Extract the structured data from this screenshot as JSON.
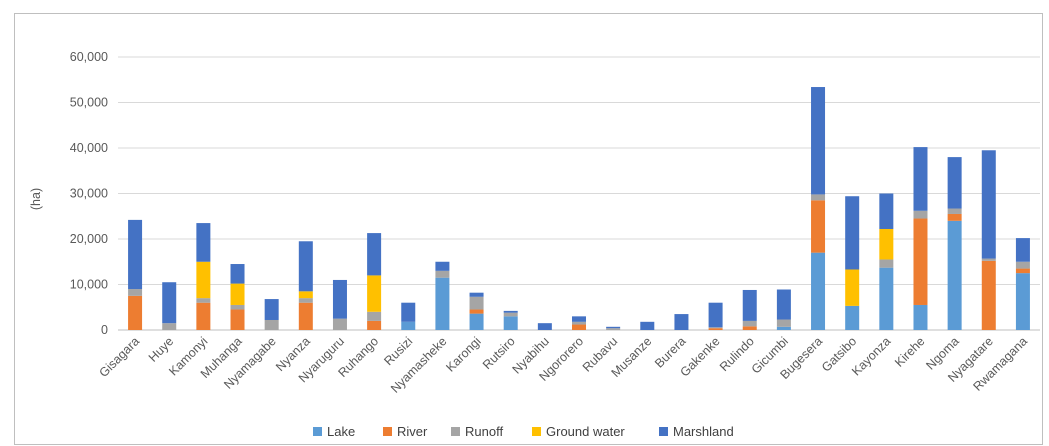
{
  "chart_data": {
    "type": "bar",
    "stacked": true,
    "title": "",
    "xlabel": "",
    "ylabel": "(ha)",
    "ylim": [
      0,
      60000
    ],
    "yticks": [
      0,
      10000,
      20000,
      30000,
      40000,
      50000,
      60000
    ],
    "ytick_labels": [
      "0",
      "10,000",
      "20,000",
      "30,000",
      "40,000",
      "50,000",
      "60,000"
    ],
    "grid": true,
    "legend_position": "bottom",
    "categories": [
      "Gisagara",
      "Huye",
      "Kamonyi",
      "Muhanga",
      "Nyamagabe",
      "Nyanza",
      "Nyaruguru",
      "Ruhango",
      "Rusizi",
      "Nyamasheke",
      "Karongi",
      "Rutsiro",
      "Nyabihu",
      "Ngororero",
      "Rubavu",
      "Musanze",
      "Burera",
      "Gakenke",
      "Rulindo",
      "Gicumbi",
      "Bugesera",
      "Gatsibo",
      "Kayonza",
      "Kirehe",
      "Ngoma",
      "Nyagatare",
      "Rwamagana"
    ],
    "series": [
      {
        "name": "Lake",
        "color": "#5b9bd5",
        "values": [
          0,
          0,
          0,
          0,
          0,
          0,
          0,
          0,
          1800,
          11500,
          3600,
          3000,
          0,
          0,
          0,
          0,
          0,
          0,
          0,
          700,
          17000,
          5300,
          13700,
          5500,
          24000,
          0,
          12500
        ]
      },
      {
        "name": "River",
        "color": "#ed7d31",
        "values": [
          7500,
          0,
          6000,
          4500,
          0,
          6000,
          0,
          2000,
          0,
          0,
          900,
          0,
          0,
          1200,
          0,
          0,
          0,
          400,
          800,
          0,
          11500,
          0,
          0,
          19000,
          1500,
          15200,
          1000
        ]
      },
      {
        "name": "Runoff",
        "color": "#a5a5a5",
        "values": [
          1500,
          1500,
          1000,
          1000,
          2200,
          1000,
          2500,
          2000,
          0,
          1500,
          2800,
          800,
          0,
          600,
          400,
          0,
          0,
          200,
          1200,
          1600,
          1300,
          0,
          1800,
          1700,
          1200,
          500,
          1500
        ]
      },
      {
        "name": "Ground water",
        "color": "#ffc000",
        "values": [
          0,
          0,
          8000,
          4700,
          0,
          1500,
          0,
          8000,
          0,
          0,
          0,
          0,
          0,
          0,
          0,
          0,
          0,
          0,
          0,
          0,
          0,
          8000,
          6700,
          0,
          0,
          0,
          0
        ]
      },
      {
        "name": "Marshland",
        "color": "#4472c4",
        "values": [
          15200,
          9000,
          8500,
          4300,
          4600,
          11000,
          8500,
          9300,
          4200,
          2000,
          900,
          400,
          1500,
          1200,
          300,
          1800,
          3500,
          5400,
          6800,
          6600,
          23600,
          16100,
          7800,
          14000,
          11300,
          23800,
          5200
        ]
      }
    ]
  }
}
